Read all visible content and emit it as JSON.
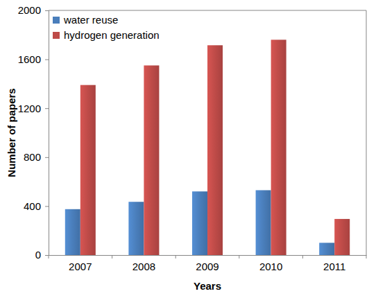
{
  "chart_data": {
    "type": "bar",
    "x_label": "Years",
    "y_label": "Number of papers",
    "categories": [
      "2007",
      "2008",
      "2009",
      "2010",
      "2011"
    ],
    "series": [
      {
        "name": "water reuse",
        "color": "#4a7ebb",
        "values": [
          375,
          435,
          520,
          530,
          100
        ]
      },
      {
        "name": "hydrogen generation",
        "color": "#be4b48",
        "values": [
          1390,
          1550,
          1715,
          1760,
          295
        ]
      }
    ],
    "ylim": [
      0,
      2000
    ],
    "yticks": [
      0,
      400,
      800,
      1200,
      1600,
      2000
    ],
    "grid": false,
    "legend": "upper left"
  }
}
